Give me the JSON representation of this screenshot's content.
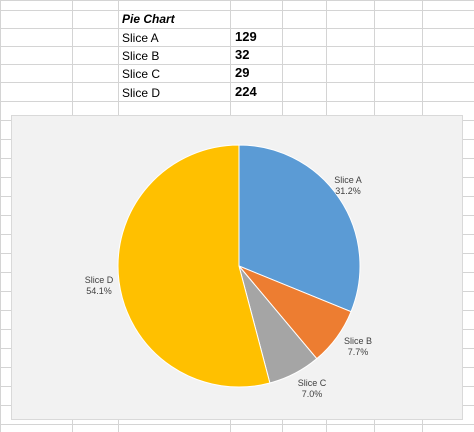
{
  "sheet": {
    "title": "Pie Chart",
    "rows": [
      {
        "label": "Slice A",
        "value": "129"
      },
      {
        "label": "Slice B",
        "value": "32"
      },
      {
        "label": "Slice C",
        "value": "29"
      },
      {
        "label": "Slice D",
        "value": "224"
      }
    ]
  },
  "chart_data": {
    "type": "pie",
    "categories": [
      "Slice A",
      "Slice B",
      "Slice C",
      "Slice D"
    ],
    "values": [
      129,
      32,
      29,
      224
    ],
    "percent_labels": [
      "31.2%",
      "7.7%",
      "7.0%",
      "54.1%"
    ],
    "colors": [
      "#5b9bd5",
      "#ed7d31",
      "#a5a5a5",
      "#ffc000"
    ],
    "start_angle": "12 o'clock",
    "direction": "clockwise",
    "title": "",
    "legend": "none",
    "data_labels": "outside"
  }
}
